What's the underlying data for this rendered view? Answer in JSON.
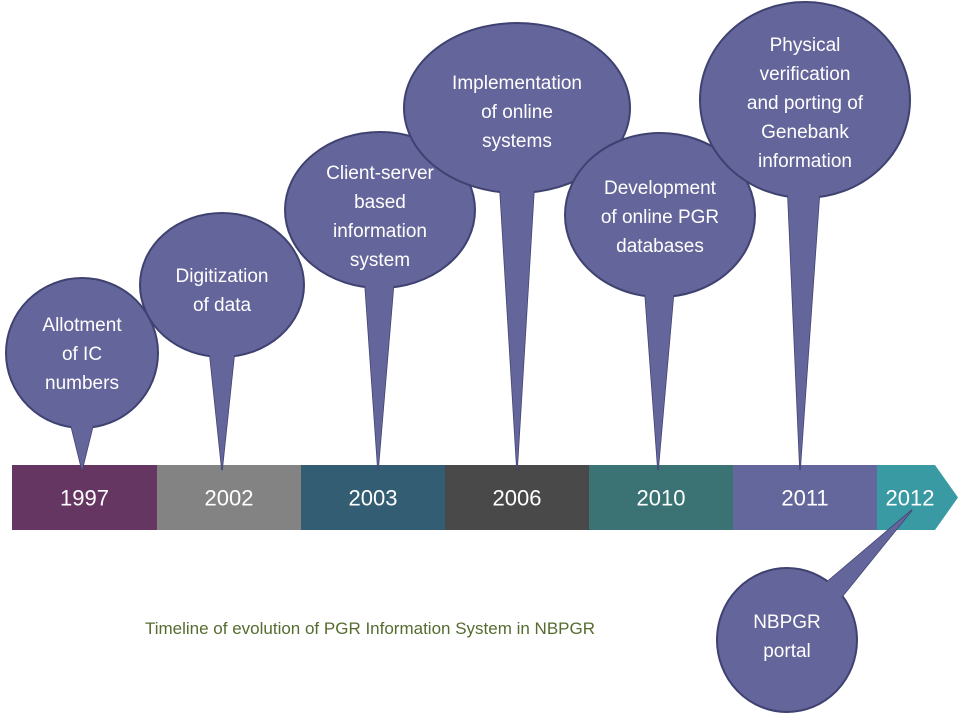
{
  "caption": "Timeline of evolution of PGR Information System in NBPGR",
  "colors": {
    "bubble": "#64659a",
    "bubble_border": "#3f4270",
    "caption": "#556b2f"
  },
  "timeline": [
    {
      "year": "1997",
      "color": "#663663",
      "event": [
        "Allotment",
        "of IC",
        "numbers"
      ]
    },
    {
      "year": "2002",
      "color": "#838383",
      "event": [
        "Digitization",
        "of data"
      ]
    },
    {
      "year": "2003",
      "color": "#335d73",
      "event": [
        "Client-server",
        "based",
        "information",
        "system"
      ]
    },
    {
      "year": "2006",
      "color": "#494949",
      "event": [
        "Implementation",
        "of online",
        "systems"
      ]
    },
    {
      "year": "2010",
      "color": "#3b7374",
      "event": [
        "Development",
        "of online PGR",
        "databases"
      ]
    },
    {
      "year": "2011",
      "color": "#64679b",
      "event": [
        "Physical",
        "verification",
        "and porting of",
        "Genebank",
        "information"
      ]
    },
    {
      "year": "2012",
      "color": "#3a9aa3",
      "event": [
        "NBPGR",
        "portal"
      ]
    }
  ]
}
